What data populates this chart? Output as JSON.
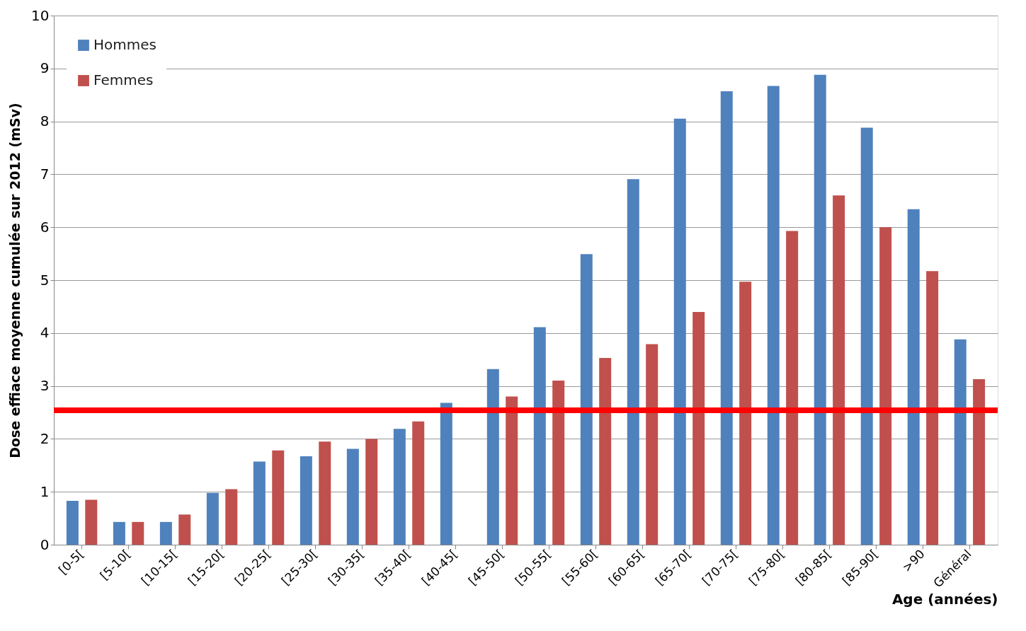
{
  "chart_data": {
    "type": "bar",
    "ylabel": "Dose effiace moyenne cumulée sur 2012 (mSv)",
    "xlabel": "Age (années)",
    "categories": [
      "[0-5[",
      "[5-10[",
      "[10-15[",
      "[15-20[",
      "[20-25[",
      "[25-30[",
      "[30-35[",
      "[35-40[",
      "[40-45[",
      "[45-50[",
      "[50-55[",
      "[55-60[",
      "[60-65[",
      "[65-70[",
      "[70-75[",
      "[75-80[",
      "[80-85[",
      "[85-90[",
      ">90",
      "Général"
    ],
    "series": [
      {
        "name": "Hommes",
        "color": "#4f81bd",
        "values": [
          0.83,
          0.43,
          0.43,
          0.98,
          1.57,
          1.67,
          1.81,
          2.19,
          2.68,
          3.32,
          4.11,
          5.49,
          6.91,
          8.05,
          8.57,
          8.67,
          8.88,
          7.88,
          6.34,
          3.88
        ]
      },
      {
        "name": "Femmes",
        "color": "#c0504d",
        "values": [
          0.85,
          0.43,
          0.57,
          1.05,
          1.78,
          1.95,
          2.0,
          2.33,
          null,
          2.8,
          3.1,
          3.53,
          3.79,
          4.4,
          4.97,
          5.93,
          6.6,
          6.0,
          5.17,
          3.13
        ]
      }
    ],
    "ylim": [
      0,
      10
    ],
    "yticks": [
      0,
      1,
      2,
      3,
      4,
      5,
      6,
      7,
      8,
      9,
      10
    ],
    "grid": "y",
    "legend": "top left",
    "ref_lines": [
      {
        "axis": "y",
        "value": 2.54,
        "color": "#ff0000"
      }
    ]
  }
}
